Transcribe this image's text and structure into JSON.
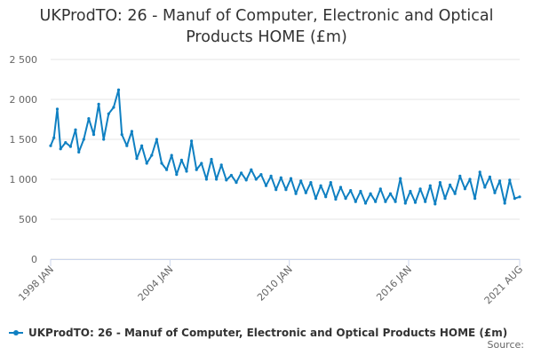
{
  "chart_data": {
    "type": "line",
    "title": "UKProdTO: 26 - Manuf of Computer, Electronic and Optical Products HOME (£m)",
    "title_lines": [
      "UKProdTO: 26 - Manuf of Computer, Electronic and Optical",
      "Products HOME (£m)"
    ],
    "xlabel": "",
    "ylabel": "",
    "ylim": [
      0,
      2500
    ],
    "y_ticks": [
      0,
      500,
      1000,
      1500,
      2000,
      2500
    ],
    "y_tick_labels": [
      "0",
      "500",
      "1 000",
      "1 500",
      "2 000",
      "2 500"
    ],
    "x_ticks": [
      "1998-01",
      "2004-01",
      "2010-01",
      "2016-01",
      "2021-08"
    ],
    "x_tick_labels": [
      "1998 JAN",
      "2004 JAN",
      "2010 JAN",
      "2016 JAN",
      "2021 AUG"
    ],
    "grid": true,
    "legend_position": "bottom-left",
    "series": [
      {
        "name": "UKProdTO: 26 - Manuf of Computer, Electronic and Optical Products HOME (£m)",
        "color": "#0f80c2",
        "anchors": [
          [
            "1998-01",
            1420
          ],
          [
            "1998-03",
            1520
          ],
          [
            "1998-05",
            1880
          ],
          [
            "1998-07",
            1380
          ],
          [
            "1998-10",
            1460
          ],
          [
            "1999-01",
            1410
          ],
          [
            "1999-04",
            1620
          ],
          [
            "1999-06",
            1340
          ],
          [
            "1999-09",
            1500
          ],
          [
            "1999-12",
            1760
          ],
          [
            "2000-03",
            1560
          ],
          [
            "2000-06",
            1940
          ],
          [
            "2000-09",
            1500
          ],
          [
            "2000-12",
            1820
          ],
          [
            "2001-03",
            1900
          ],
          [
            "2001-06",
            2120
          ],
          [
            "2001-08",
            1560
          ],
          [
            "2001-11",
            1420
          ],
          [
            "2002-02",
            1600
          ],
          [
            "2002-05",
            1260
          ],
          [
            "2002-08",
            1420
          ],
          [
            "2002-11",
            1200
          ],
          [
            "2003-02",
            1300
          ],
          [
            "2003-05",
            1500
          ],
          [
            "2003-08",
            1200
          ],
          [
            "2003-11",
            1120
          ],
          [
            "2004-02",
            1300
          ],
          [
            "2004-05",
            1060
          ],
          [
            "2004-08",
            1240
          ],
          [
            "2004-11",
            1100
          ],
          [
            "2005-02",
            1480
          ],
          [
            "2005-05",
            1120
          ],
          [
            "2005-08",
            1200
          ],
          [
            "2005-11",
            1000
          ],
          [
            "2006-02",
            1250
          ],
          [
            "2006-05",
            1000
          ],
          [
            "2006-08",
            1180
          ],
          [
            "2006-11",
            990
          ],
          [
            "2007-02",
            1050
          ],
          [
            "2007-05",
            960
          ],
          [
            "2007-08",
            1080
          ],
          [
            "2007-11",
            990
          ],
          [
            "2008-02",
            1120
          ],
          [
            "2008-05",
            1000
          ],
          [
            "2008-08",
            1060
          ],
          [
            "2008-11",
            920
          ],
          [
            "2009-02",
            1040
          ],
          [
            "2009-05",
            870
          ],
          [
            "2009-08",
            1020
          ],
          [
            "2009-11",
            870
          ],
          [
            "2010-02",
            1010
          ],
          [
            "2010-05",
            820
          ],
          [
            "2010-08",
            980
          ],
          [
            "2010-11",
            830
          ],
          [
            "2011-02",
            960
          ],
          [
            "2011-05",
            760
          ],
          [
            "2011-08",
            920
          ],
          [
            "2011-11",
            780
          ],
          [
            "2012-02",
            960
          ],
          [
            "2012-05",
            750
          ],
          [
            "2012-08",
            900
          ],
          [
            "2012-11",
            760
          ],
          [
            "2013-02",
            860
          ],
          [
            "2013-05",
            720
          ],
          [
            "2013-08",
            850
          ],
          [
            "2013-11",
            700
          ],
          [
            "2014-02",
            820
          ],
          [
            "2014-05",
            720
          ],
          [
            "2014-08",
            880
          ],
          [
            "2014-11",
            720
          ],
          [
            "2015-02",
            820
          ],
          [
            "2015-05",
            720
          ],
          [
            "2015-08",
            1010
          ],
          [
            "2015-11",
            700
          ],
          [
            "2016-02",
            850
          ],
          [
            "2016-05",
            710
          ],
          [
            "2016-08",
            880
          ],
          [
            "2016-11",
            720
          ],
          [
            "2017-02",
            920
          ],
          [
            "2017-05",
            690
          ],
          [
            "2017-08",
            960
          ],
          [
            "2017-11",
            760
          ],
          [
            "2018-02",
            930
          ],
          [
            "2018-05",
            820
          ],
          [
            "2018-08",
            1040
          ],
          [
            "2018-11",
            880
          ],
          [
            "2019-02",
            1000
          ],
          [
            "2019-05",
            760
          ],
          [
            "2019-08",
            1090
          ],
          [
            "2019-11",
            900
          ],
          [
            "2020-02",
            1030
          ],
          [
            "2020-05",
            830
          ],
          [
            "2020-08",
            980
          ],
          [
            "2020-11",
            700
          ],
          [
            "2021-02",
            990
          ],
          [
            "2021-05",
            760
          ],
          [
            "2021-08",
            780
          ]
        ]
      }
    ],
    "source_label": "Source:"
  }
}
